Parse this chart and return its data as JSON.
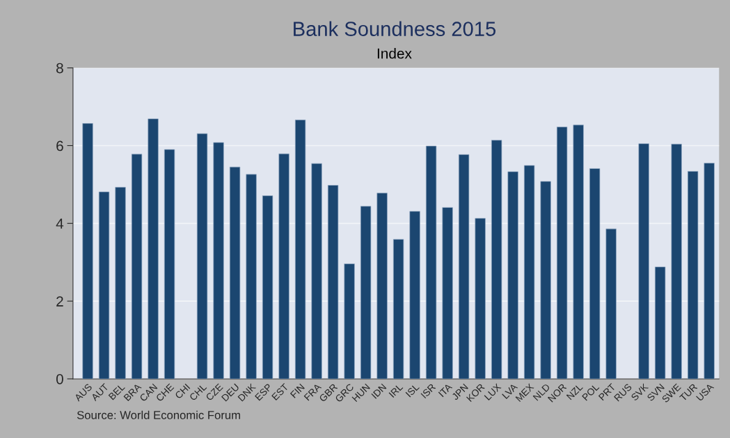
{
  "chart_data": {
    "type": "bar",
    "title": "Bank Soundness 2015",
    "subtitle": "Index",
    "categories": [
      "AUS",
      "AUT",
      "BEL",
      "BRA",
      "CAN",
      "CHE",
      "CHI",
      "CHL",
      "CZE",
      "DEU",
      "DNK",
      "ESP",
      "EST",
      "FIN",
      "FRA",
      "GBR",
      "GRC",
      "HUN",
      "IDN",
      "IRL",
      "ISL",
      "ISR",
      "ITA",
      "JPN",
      "KOR",
      "LUX",
      "LVA",
      "MEX",
      "NLD",
      "NOR",
      "NZL",
      "POL",
      "PRT",
      "RUS",
      "SVK",
      "SVN",
      "SWE",
      "TUR",
      "USA"
    ],
    "values": [
      6.57,
      4.81,
      4.93,
      5.78,
      6.69,
      5.9,
      null,
      6.31,
      6.08,
      5.45,
      5.26,
      4.71,
      5.79,
      6.66,
      5.54,
      4.98,
      2.96,
      4.44,
      4.78,
      3.59,
      4.31,
      5.99,
      4.41,
      5.77,
      4.13,
      6.14,
      5.33,
      5.49,
      5.08,
      6.48,
      6.53,
      5.41,
      3.86,
      null,
      6.05,
      2.88,
      6.04,
      5.34,
      5.55
    ],
    "color": "#1b4670",
    "ylim": [
      0,
      8
    ],
    "yticks": [
      0,
      2,
      4,
      6,
      8
    ],
    "grid": "y",
    "annotations": [
      "Source: World Economic Forum"
    ]
  }
}
